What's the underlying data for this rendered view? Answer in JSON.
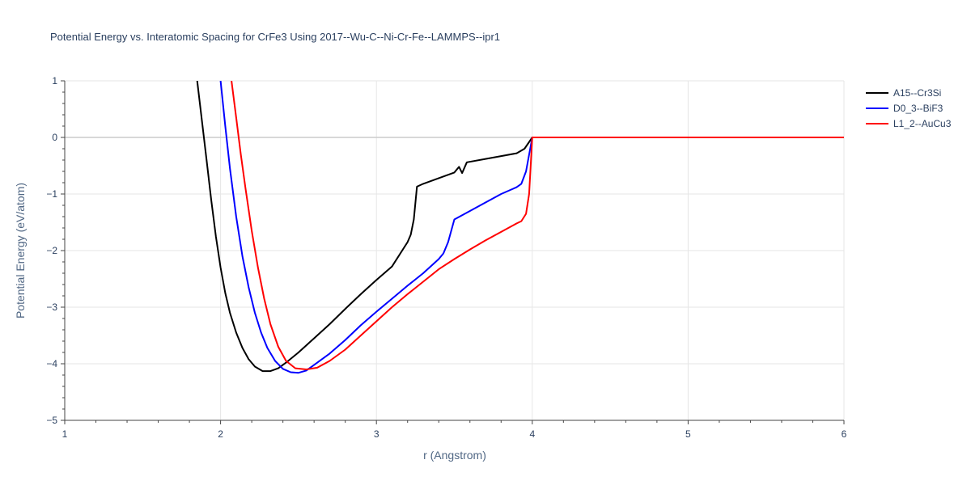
{
  "chart_data": {
    "type": "line",
    "title": "Potential Energy vs. Interatomic Spacing for CrFe3 Using 2017--Wu-C--Ni-Cr-Fe--LAMMPS--ipr1",
    "xlabel": "r (Angstrom)",
    "ylabel": "Potential Energy (eV/atom)",
    "xlim": [
      1,
      6
    ],
    "ylim": [
      -5,
      1
    ],
    "xticks": [
      1,
      2,
      3,
      4,
      5,
      6
    ],
    "xtick_labels": [
      "1",
      "2",
      "3",
      "4",
      "5",
      "6"
    ],
    "yticks": [
      1,
      0,
      -1,
      -2,
      -3,
      -4,
      -5
    ],
    "ytick_labels": [
      "1",
      "0",
      "−1",
      "−2",
      "−3",
      "−4",
      "−5"
    ],
    "grid": true,
    "legend_position": "top-right",
    "series": [
      {
        "name": "A15--Cr3Si",
        "color": "#000000",
        "x": [
          1.85,
          1.88,
          1.91,
          1.94,
          1.97,
          2.0,
          2.03,
          2.06,
          2.1,
          2.14,
          2.18,
          2.22,
          2.27,
          2.32,
          2.37,
          2.42,
          2.5,
          2.6,
          2.7,
          2.8,
          2.9,
          3.0,
          3.1,
          3.2,
          3.22,
          3.24,
          3.26,
          3.3,
          3.4,
          3.5,
          3.53,
          3.55,
          3.58,
          3.7,
          3.8,
          3.9,
          3.95,
          4.0,
          4.2,
          4.5,
          5.0,
          5.5,
          6.0
        ],
        "y": [
          1.0,
          0.3,
          -0.4,
          -1.1,
          -1.75,
          -2.3,
          -2.75,
          -3.1,
          -3.45,
          -3.72,
          -3.92,
          -4.05,
          -4.13,
          -4.13,
          -4.08,
          -3.98,
          -3.8,
          -3.55,
          -3.3,
          -3.03,
          -2.77,
          -2.52,
          -2.28,
          -1.85,
          -1.72,
          -1.45,
          -0.87,
          -0.82,
          -0.72,
          -0.62,
          -0.52,
          -0.63,
          -0.44,
          -0.38,
          -0.33,
          -0.28,
          -0.2,
          0.0,
          0.0,
          0.0,
          0.0,
          0.0,
          0.0
        ]
      },
      {
        "name": "D0_3--BiF3",
        "color": "#0000ff",
        "x": [
          2.0,
          2.03,
          2.06,
          2.1,
          2.14,
          2.18,
          2.22,
          2.26,
          2.3,
          2.35,
          2.4,
          2.45,
          2.5,
          2.55,
          2.6,
          2.7,
          2.8,
          2.9,
          3.0,
          3.1,
          3.2,
          3.3,
          3.4,
          3.43,
          3.46,
          3.5,
          3.6,
          3.7,
          3.8,
          3.9,
          3.93,
          3.96,
          4.0,
          4.2,
          4.5,
          5.0,
          5.5,
          6.0
        ],
        "y": [
          1.0,
          0.2,
          -0.55,
          -1.4,
          -2.1,
          -2.65,
          -3.1,
          -3.45,
          -3.72,
          -3.95,
          -4.09,
          -4.15,
          -4.16,
          -4.12,
          -4.02,
          -3.82,
          -3.58,
          -3.32,
          -3.08,
          -2.85,
          -2.62,
          -2.4,
          -2.15,
          -2.05,
          -1.85,
          -1.45,
          -1.3,
          -1.15,
          -1.0,
          -0.88,
          -0.82,
          -0.6,
          0.0,
          0.0,
          0.0,
          0.0,
          0.0,
          0.0
        ]
      },
      {
        "name": "L1_2--AuCu3",
        "color": "#ff0000",
        "x": [
          2.07,
          2.1,
          2.13,
          2.16,
          2.2,
          2.24,
          2.28,
          2.32,
          2.37,
          2.42,
          2.48,
          2.55,
          2.62,
          2.7,
          2.8,
          2.9,
          3.0,
          3.1,
          3.2,
          3.3,
          3.4,
          3.5,
          3.6,
          3.7,
          3.8,
          3.9,
          3.93,
          3.96,
          3.98,
          4.0,
          4.2,
          4.5,
          5.0,
          5.5,
          6.0
        ],
        "y": [
          1.0,
          0.35,
          -0.3,
          -0.9,
          -1.65,
          -2.3,
          -2.85,
          -3.3,
          -3.7,
          -3.95,
          -4.08,
          -4.1,
          -4.07,
          -3.95,
          -3.75,
          -3.5,
          -3.25,
          -3.0,
          -2.77,
          -2.55,
          -2.33,
          -2.15,
          -1.98,
          -1.82,
          -1.67,
          -1.52,
          -1.48,
          -1.35,
          -1.0,
          0.0,
          0.0,
          0.0,
          0.0,
          0.0,
          0.0
        ]
      }
    ]
  }
}
